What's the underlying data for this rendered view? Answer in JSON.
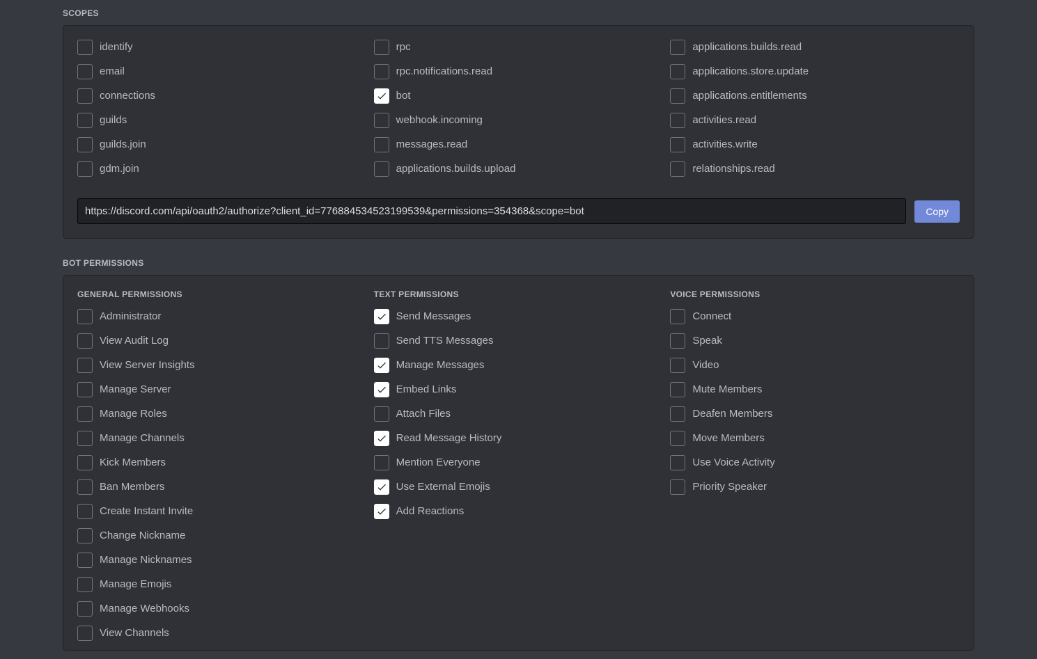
{
  "colors": {
    "page_bg": "#36393f",
    "panel_bg": "#2f3136",
    "panel_border": "#202225",
    "input_bg": "#202225",
    "input_border": "#040405",
    "text_primary": "#dcddde",
    "text_muted": "#b9bbbe",
    "checkbox_border": "#72767d",
    "checkbox_checked_bg": "#ffffff",
    "button_bg": "#7289da",
    "button_text": "#ffffff",
    "checkmark_color": "#2f3136"
  },
  "scopes": {
    "title": "SCOPES",
    "columns": [
      [
        {
          "label": "identify",
          "checked": false
        },
        {
          "label": "email",
          "checked": false
        },
        {
          "label": "connections",
          "checked": false
        },
        {
          "label": "guilds",
          "checked": false
        },
        {
          "label": "guilds.join",
          "checked": false
        },
        {
          "label": "gdm.join",
          "checked": false
        }
      ],
      [
        {
          "label": "rpc",
          "checked": false
        },
        {
          "label": "rpc.notifications.read",
          "checked": false
        },
        {
          "label": "bot",
          "checked": true
        },
        {
          "label": "webhook.incoming",
          "checked": false
        },
        {
          "label": "messages.read",
          "checked": false
        },
        {
          "label": "applications.builds.upload",
          "checked": false
        }
      ],
      [
        {
          "label": "applications.builds.read",
          "checked": false
        },
        {
          "label": "applications.store.update",
          "checked": false
        },
        {
          "label": "applications.entitlements",
          "checked": false
        },
        {
          "label": "activities.read",
          "checked": false
        },
        {
          "label": "activities.write",
          "checked": false
        },
        {
          "label": "relationships.read",
          "checked": false
        }
      ]
    ],
    "url": "https://discord.com/api/oauth2/authorize?client_id=776884534523199539&permissions=354368&scope=bot",
    "copy_label": "Copy"
  },
  "bot_permissions": {
    "title": "BOT PERMISSIONS",
    "columns": [
      {
        "title": "GENERAL PERMISSIONS",
        "items": [
          {
            "label": "Administrator",
            "checked": false
          },
          {
            "label": "View Audit Log",
            "checked": false
          },
          {
            "label": "View Server Insights",
            "checked": false
          },
          {
            "label": "Manage Server",
            "checked": false
          },
          {
            "label": "Manage Roles",
            "checked": false
          },
          {
            "label": "Manage Channels",
            "checked": false
          },
          {
            "label": "Kick Members",
            "checked": false
          },
          {
            "label": "Ban Members",
            "checked": false
          },
          {
            "label": "Create Instant Invite",
            "checked": false
          },
          {
            "label": "Change Nickname",
            "checked": false
          },
          {
            "label": "Manage Nicknames",
            "checked": false
          },
          {
            "label": "Manage Emojis",
            "checked": false
          },
          {
            "label": "Manage Webhooks",
            "checked": false
          },
          {
            "label": "View Channels",
            "checked": false
          }
        ]
      },
      {
        "title": "TEXT PERMISSIONS",
        "items": [
          {
            "label": "Send Messages",
            "checked": true
          },
          {
            "label": "Send TTS Messages",
            "checked": false
          },
          {
            "label": "Manage Messages",
            "checked": true
          },
          {
            "label": "Embed Links",
            "checked": true
          },
          {
            "label": "Attach Files",
            "checked": false
          },
          {
            "label": "Read Message History",
            "checked": true
          },
          {
            "label": "Mention Everyone",
            "checked": false
          },
          {
            "label": "Use External Emojis",
            "checked": true
          },
          {
            "label": "Add Reactions",
            "checked": true
          }
        ]
      },
      {
        "title": "VOICE PERMISSIONS",
        "items": [
          {
            "label": "Connect",
            "checked": false
          },
          {
            "label": "Speak",
            "checked": false
          },
          {
            "label": "Video",
            "checked": false
          },
          {
            "label": "Mute Members",
            "checked": false
          },
          {
            "label": "Deafen Members",
            "checked": false
          },
          {
            "label": "Move Members",
            "checked": false
          },
          {
            "label": "Use Voice Activity",
            "checked": false
          },
          {
            "label": "Priority Speaker",
            "checked": false
          }
        ]
      }
    ]
  }
}
